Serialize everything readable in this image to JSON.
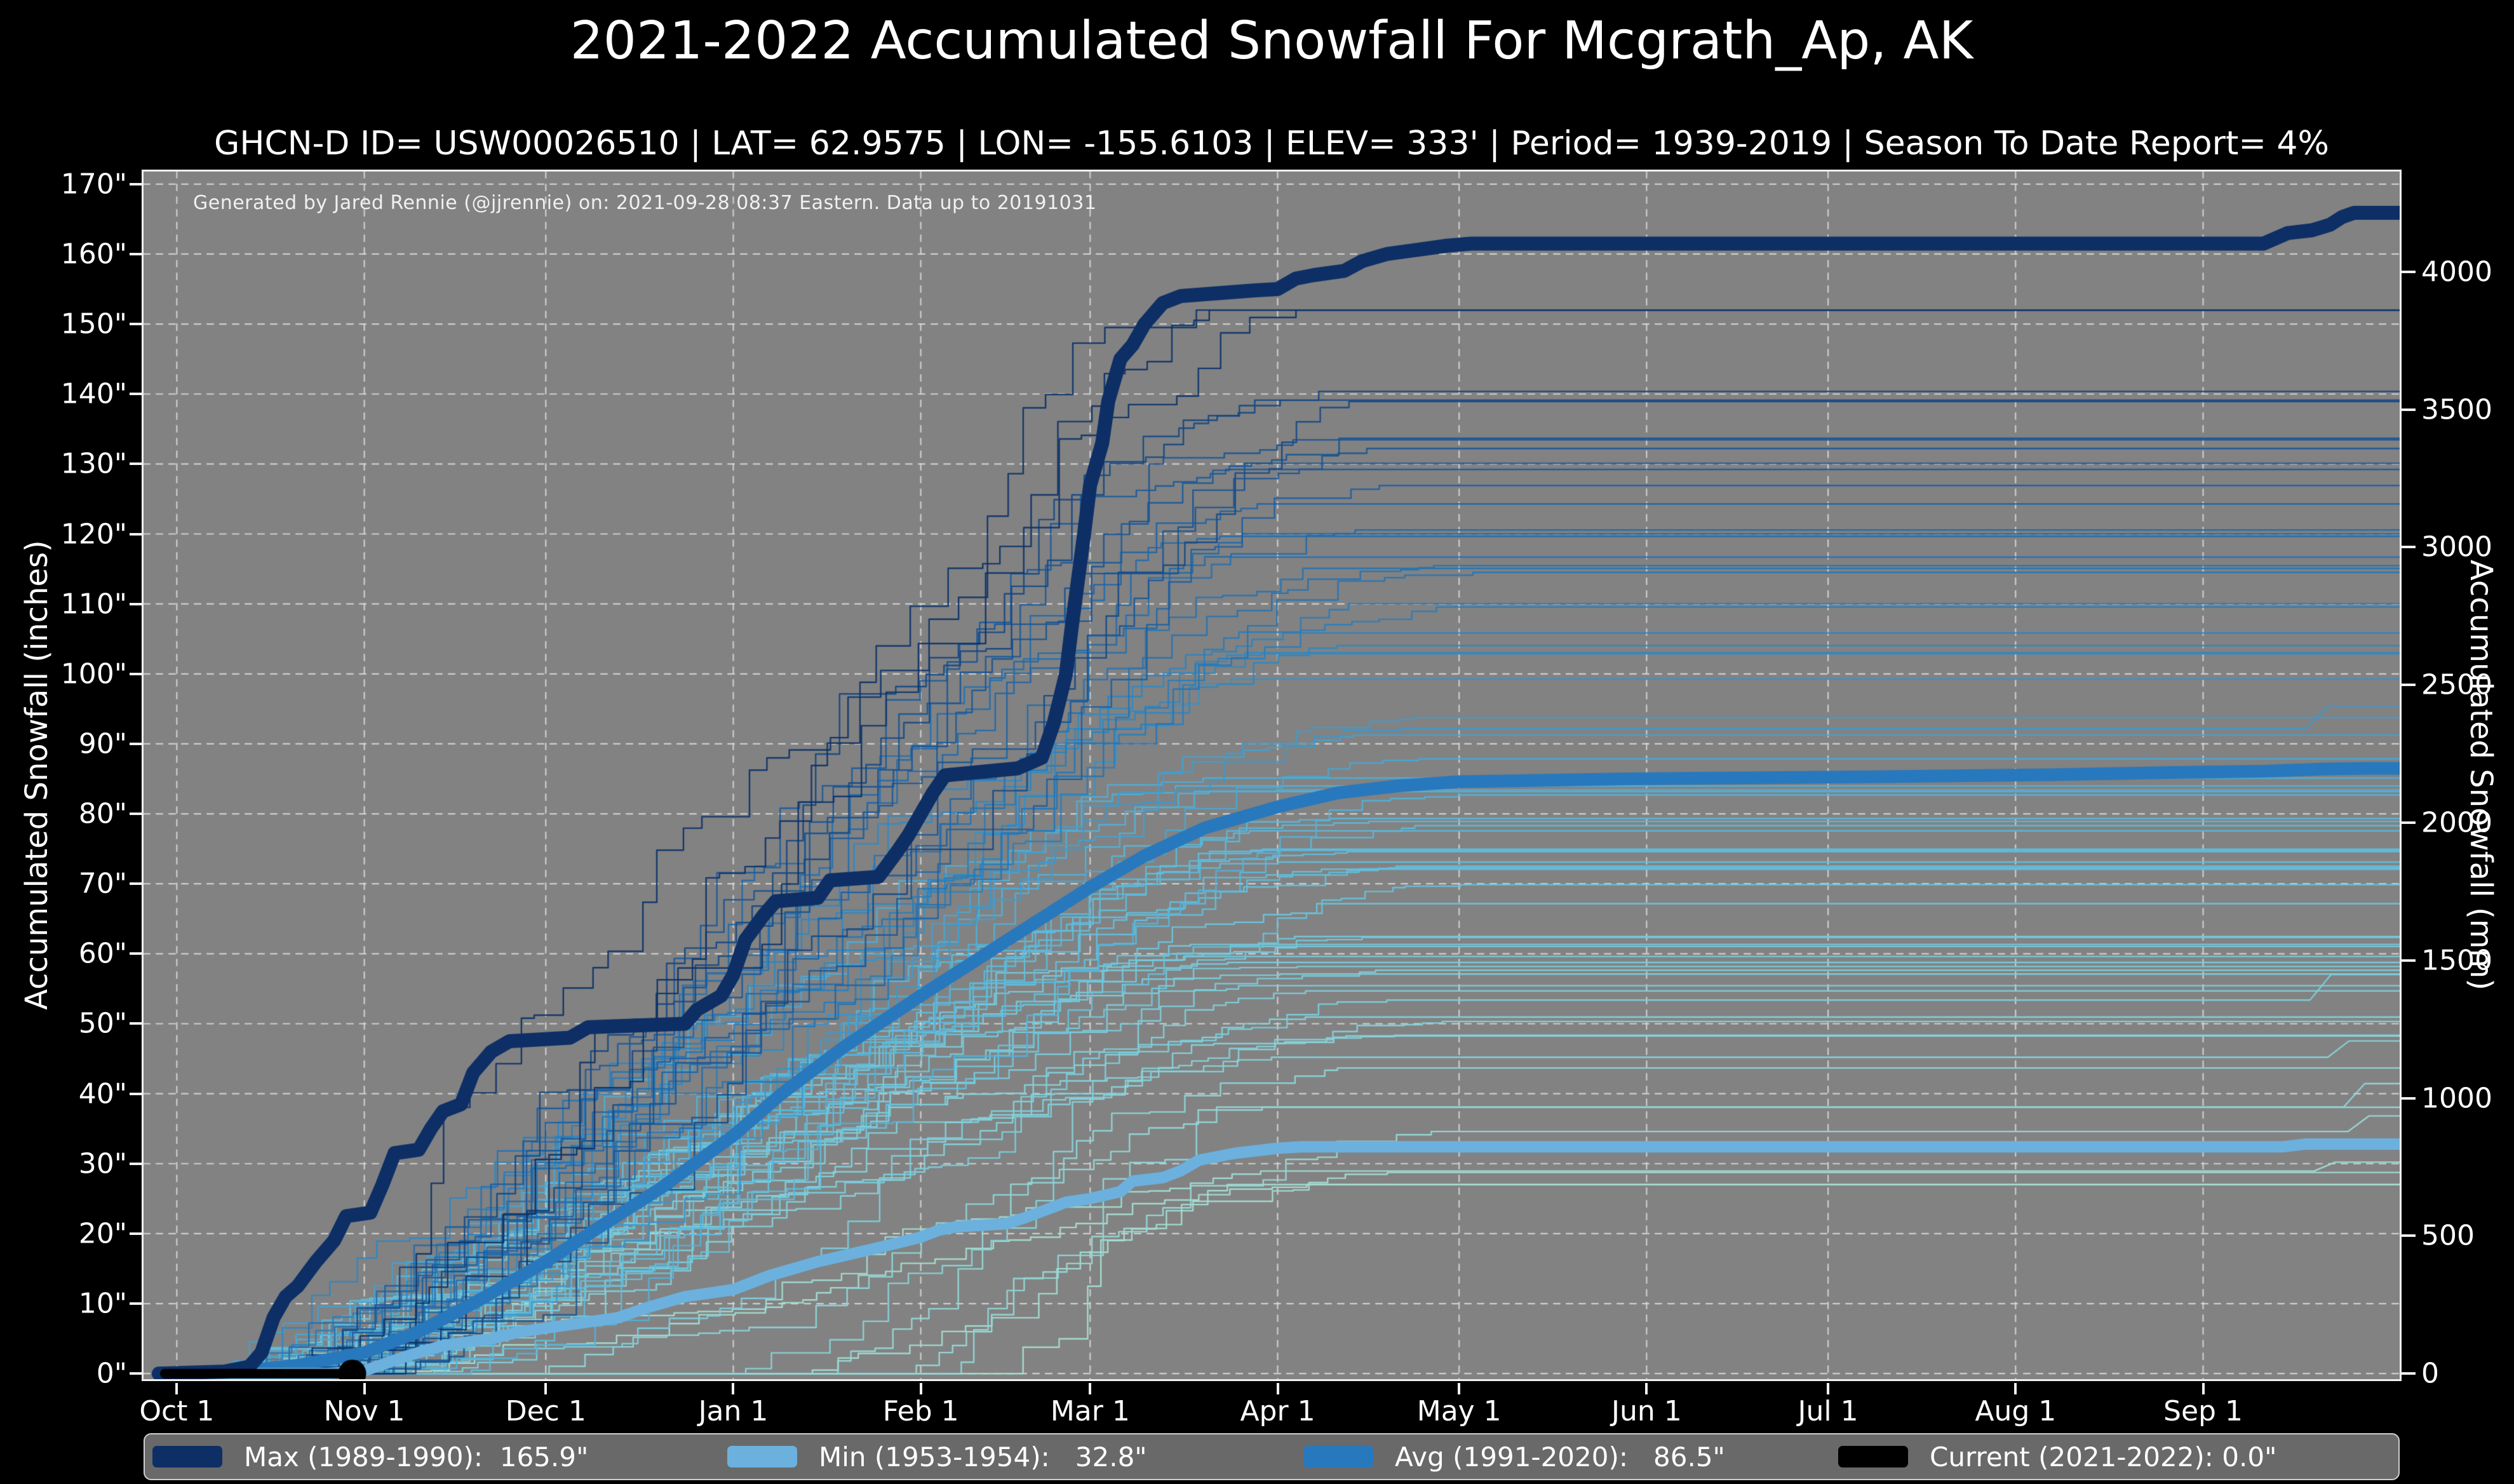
{
  "title": "2021-2022 Accumulated Snowfall For Mcgrath_Ap, AK",
  "subtitle": "GHCN-D ID= USW00026510 | LAT= 62.9575 | LON= -155.6103 | ELEV= 333' | Period= 1939-2019 | Season To Date Report= 4%",
  "annotation": "Generated by Jared Rennie (@jjrennie) on: 2021-09-28 08:37 Eastern. Data up to 20191031",
  "colors": {
    "page_background": "#000000",
    "plot_background": "#828282",
    "frame": "#f0f0f0",
    "grid": "#dedede",
    "legend_background": "#696969",
    "max_line": "#0d2f66",
    "min_line": "#6cb1de",
    "avg_line": "#2878bd",
    "current_line": "#000000"
  },
  "chart_data": {
    "type": "line",
    "title": "2021-2022 Accumulated Snowfall For Mcgrath_Ap, AK",
    "x_axis": {
      "tick_days": [
        0,
        31,
        61,
        92,
        123,
        151,
        182,
        212,
        243,
        273,
        304,
        335
      ],
      "tick_labels": [
        "Oct 1",
        "Nov 1",
        "Dec 1",
        "Jan 1",
        "Feb 1",
        "Mar 1",
        "Apr 1",
        "May 1",
        "Jun 1",
        "Jul 1",
        "Aug 1",
        "Sep 1"
      ],
      "xlim": [
        -5.5,
        367.5
      ]
    },
    "y_axis_left": {
      "label": "Accumulated Snowfall (inches)",
      "tick_values": [
        0,
        10,
        20,
        30,
        40,
        50,
        60,
        70,
        80,
        90,
        100,
        110,
        120,
        130,
        140,
        150,
        160,
        170
      ],
      "tick_labels": [
        "0\"",
        "10\"",
        "20\"",
        "30\"",
        "40\"",
        "50\"",
        "60\"",
        "70\"",
        "80\"",
        "90\"",
        "100\"",
        "110\"",
        "120\"",
        "130\"",
        "140\"",
        "150\"",
        "160\"",
        "170\""
      ],
      "ylim": [
        -0.8,
        171.8
      ],
      "grid": true
    },
    "y_axis_right": {
      "label": "Accumulated Snowfall (mm)",
      "tick_values_mm": [
        0,
        500,
        1000,
        1500,
        2000,
        2500,
        3000,
        3500,
        4000
      ],
      "tick_labels": [
        "0",
        "500",
        "1000",
        "1500",
        "2000",
        "2500",
        "3000",
        "3500",
        "4000"
      ],
      "mm_per_inch": 25.4
    },
    "series": [
      {
        "name": "max",
        "label": "Max (1989-1990):  165.9\"",
        "final_value_inches": 165.9,
        "color": "#0d2f66",
        "linewidth": 22,
        "points": [
          [
            -3,
            0
          ],
          [
            8,
            0.3
          ],
          [
            12,
            1
          ],
          [
            14,
            3
          ],
          [
            16,
            8
          ],
          [
            18,
            11
          ],
          [
            20,
            12.5
          ],
          [
            23,
            16
          ],
          [
            26,
            19
          ],
          [
            28,
            22.5
          ],
          [
            32,
            23
          ],
          [
            34,
            27
          ],
          [
            36,
            31.5
          ],
          [
            40,
            32
          ],
          [
            42,
            35
          ],
          [
            44,
            37.5
          ],
          [
            47,
            38.5
          ],
          [
            49,
            43
          ],
          [
            52,
            46
          ],
          [
            55,
            47.5
          ],
          [
            65,
            48
          ],
          [
            68,
            49.5
          ],
          [
            84,
            50
          ],
          [
            86,
            52
          ],
          [
            90,
            54
          ],
          [
            92,
            57
          ],
          [
            94,
            62
          ],
          [
            97,
            65.5
          ],
          [
            99,
            67.5
          ],
          [
            106,
            68
          ],
          [
            108,
            70.5
          ],
          [
            116,
            71
          ],
          [
            119,
            74.5
          ],
          [
            121,
            77
          ],
          [
            123,
            80
          ],
          [
            125,
            83
          ],
          [
            127,
            85.5
          ],
          [
            139,
            86.5
          ],
          [
            143,
            88
          ],
          [
            145,
            93
          ],
          [
            147,
            100
          ],
          [
            148,
            107
          ],
          [
            150,
            120
          ],
          [
            151,
            127
          ],
          [
            153,
            133
          ],
          [
            154,
            139
          ],
          [
            156,
            145
          ],
          [
            158,
            147
          ],
          [
            160,
            150
          ],
          [
            163,
            153
          ],
          [
            166,
            154
          ],
          [
            178,
            154.8
          ],
          [
            182,
            155
          ],
          [
            185,
            156.5
          ],
          [
            188,
            157
          ],
          [
            193,
            157.6
          ],
          [
            196,
            159
          ],
          [
            200,
            160
          ],
          [
            205,
            160.6
          ],
          [
            210,
            161.2
          ],
          [
            214,
            161.5
          ],
          [
            345,
            161.5
          ],
          [
            349,
            163
          ],
          [
            353,
            163.4
          ],
          [
            356,
            164.2
          ],
          [
            358,
            165.3
          ],
          [
            360,
            165.9
          ],
          [
            368,
            165.9
          ]
        ]
      },
      {
        "name": "min",
        "label": "Min (1953-1954):   32.8\"",
        "final_value_inches": 32.8,
        "color": "#6cb1de",
        "linewidth": 18,
        "points": [
          [
            -3,
            0
          ],
          [
            25,
            0
          ],
          [
            31,
            0.4
          ],
          [
            33,
            1
          ],
          [
            38,
            2.5
          ],
          [
            44,
            4
          ],
          [
            52,
            5
          ],
          [
            57,
            6
          ],
          [
            65,
            7
          ],
          [
            73,
            8
          ],
          [
            78,
            9.5
          ],
          [
            84,
            11
          ],
          [
            92,
            12
          ],
          [
            98,
            14
          ],
          [
            106,
            16
          ],
          [
            111,
            17
          ],
          [
            116,
            18
          ],
          [
            123,
            19.5
          ],
          [
            126,
            20.5
          ],
          [
            129,
            21
          ],
          [
            137,
            21.4
          ],
          [
            140,
            22.2
          ],
          [
            144,
            23.5
          ],
          [
            147,
            24.5
          ],
          [
            151,
            25
          ],
          [
            156,
            26
          ],
          [
            158,
            27.5
          ],
          [
            163,
            28
          ],
          [
            166,
            29
          ],
          [
            169,
            30.5
          ],
          [
            175,
            31.5
          ],
          [
            182,
            32.2
          ],
          [
            186,
            32.4
          ],
          [
            348,
            32.4
          ],
          [
            352,
            32.8
          ],
          [
            368,
            32.8
          ]
        ]
      },
      {
        "name": "avg",
        "label": "Avg (1991-2020):   86.5\"",
        "final_value_inches": 86.5,
        "color": "#2878bd",
        "linewidth": 20,
        "points": [
          [
            -3,
            0
          ],
          [
            10,
            0.3
          ],
          [
            20,
            1.2
          ],
          [
            31,
            3
          ],
          [
            40,
            6
          ],
          [
            50,
            10.5
          ],
          [
            61,
            16
          ],
          [
            70,
            21
          ],
          [
            80,
            26.5
          ],
          [
            92,
            34
          ],
          [
            100,
            40
          ],
          [
            110,
            46.5
          ],
          [
            123,
            54
          ],
          [
            132,
            59
          ],
          [
            141,
            64
          ],
          [
            151,
            69.5
          ],
          [
            160,
            74
          ],
          [
            170,
            78
          ],
          [
            182,
            81
          ],
          [
            192,
            83
          ],
          [
            202,
            84
          ],
          [
            212,
            84.6
          ],
          [
            240,
            85
          ],
          [
            280,
            85.3
          ],
          [
            310,
            85.6
          ],
          [
            330,
            85.9
          ],
          [
            345,
            86.1
          ],
          [
            355,
            86.4
          ],
          [
            362,
            86.5
          ],
          [
            368,
            86.5
          ]
        ]
      },
      {
        "name": "current",
        "label": "Current (2021-2022): 0.0\"",
        "final_value_inches": 0.0,
        "color": "#000000",
        "linewidth": 15,
        "points": [
          [
            -2,
            0
          ],
          [
            29,
            0
          ]
        ],
        "marker": {
          "day": 29,
          "value": 0,
          "radius": 22
        }
      }
    ],
    "background_years": {
      "description": "one thin line per season 1939-2019, colored light-to-dark by season total",
      "count": 74,
      "seed": 20211022,
      "final_min_inches": 27,
      "final_max_inches": 152,
      "linewidth": 2.4,
      "palette_stops": [
        [
          0,
          "#a6ded2"
        ],
        [
          0.22,
          "#7fd0dc"
        ],
        [
          0.42,
          "#58b8dc"
        ],
        [
          0.62,
          "#2e86c1"
        ],
        [
          0.8,
          "#1f5fa0"
        ],
        [
          1,
          "#0e3468"
        ]
      ]
    },
    "legend": [
      {
        "name": "max",
        "label": "Max (1989-1990):  165.9\"",
        "color": "#0d2f66"
      },
      {
        "name": "min",
        "label": "Min (1953-1954):   32.8\"",
        "color": "#6cb1de"
      },
      {
        "name": "avg",
        "label": "Avg (1991-2020):   86.5\"",
        "color": "#2878bd"
      },
      {
        "name": "current",
        "label": "Current (2021-2022): 0.0\"",
        "color": "#000000"
      }
    ],
    "legend_position": "bottom"
  }
}
